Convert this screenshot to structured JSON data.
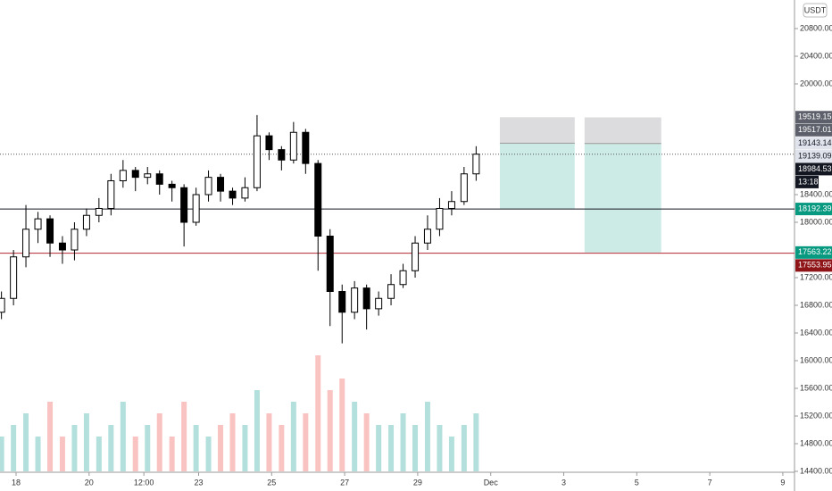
{
  "chart_data": {
    "type": "candlestick",
    "currency": "USDT",
    "x": [
      17.6,
      17.93,
      18.27,
      18.6,
      18.93,
      19.27,
      19.6,
      19.93,
      20.27,
      20.6,
      20.93,
      21.27,
      21.6,
      21.93,
      22.27,
      22.6,
      22.93,
      23.27,
      23.6,
      23.93,
      24.27,
      24.6,
      24.93,
      25.27,
      25.6,
      25.93,
      26.27,
      26.6,
      26.93,
      27.27,
      27.6,
      27.93,
      28.27,
      28.6,
      28.93,
      29.27,
      29.6,
      29.93,
      30.27,
      30.6
    ],
    "open": [
      16700,
      16900,
      17500,
      17900,
      18050,
      17700,
      17600,
      17900,
      18100,
      18200,
      18600,
      18750,
      18650,
      18700,
      18550,
      18500,
      18000,
      18400,
      18650,
      18450,
      18350,
      18500,
      19250,
      19050,
      18900,
      19300,
      18850,
      17800,
      17000,
      16700,
      17050,
      16750,
      16900,
      17100,
      17300,
      17700,
      17900,
      18200,
      18300,
      18700
    ],
    "high": [
      17000,
      17600,
      18250,
      18150,
      18100,
      17800,
      18000,
      18200,
      18350,
      18700,
      18900,
      18800,
      18800,
      18750,
      18600,
      18550,
      18500,
      18750,
      18700,
      18500,
      18650,
      19550,
      19300,
      19100,
      19450,
      19350,
      18900,
      17900,
      17100,
      17150,
      17100,
      17000,
      17250,
      17400,
      17800,
      18100,
      18350,
      18450,
      18800,
      19100
    ],
    "low": [
      16600,
      16800,
      17350,
      17700,
      17500,
      17400,
      17450,
      17800,
      18000,
      18100,
      18500,
      18450,
      18550,
      18400,
      18300,
      17650,
      17950,
      18300,
      18300,
      18250,
      18300,
      18450,
      18900,
      18750,
      18850,
      18700,
      17300,
      16500,
      16250,
      16600,
      16450,
      16650,
      16800,
      17050,
      17200,
      17600,
      17800,
      18100,
      18250,
      18600
    ],
    "close": [
      16900,
      17500,
      17900,
      18050,
      17700,
      17600,
      17900,
      18100,
      18200,
      18600,
      18750,
      18650,
      18700,
      18550,
      18500,
      18000,
      18400,
      18650,
      18450,
      18350,
      18500,
      19250,
      19050,
      18900,
      19300,
      18850,
      17800,
      17000,
      16700,
      17050,
      16750,
      16900,
      17100,
      17300,
      17700,
      17900,
      18200,
      18300,
      18700,
      18984.53
    ],
    "volume": [
      3,
      4,
      5,
      3,
      6,
      3,
      4,
      5,
      3,
      4,
      6,
      3,
      4,
      5,
      3,
      6,
      4,
      3,
      4,
      5,
      4,
      7,
      5,
      4,
      6,
      5,
      10,
      7,
      8,
      6,
      5,
      4,
      4,
      5,
      4,
      6,
      4,
      3,
      4,
      5
    ],
    "countdown": "13:18",
    "positions": [
      {
        "start": 31.25,
        "end": 33.3,
        "stop": 19519.15,
        "entry": 19143.14,
        "target": 18192.39
      },
      {
        "start": 33.57,
        "end": 35.67,
        "stop": 19517.01,
        "entry": 19139.09,
        "target": 17563.22
      }
    ],
    "horizontal_lines": [
      {
        "value": 18192.39,
        "color": "#131722"
      },
      {
        "value": 17553.95,
        "color": "#b22833"
      }
    ],
    "xlim": [
      17.56,
      39.32
    ],
    "ylim": [
      14116,
      21213
    ],
    "xticks": [
      18,
      20,
      {
        "value": 21.5,
        "label": "12:00"
      },
      23,
      25,
      27,
      29,
      {
        "value": 31,
        "label": "Dec"
      },
      {
        "value": 33,
        "label": "3"
      },
      {
        "value": 35,
        "label": "5"
      },
      {
        "value": 37,
        "label": "7"
      },
      {
        "value": 39,
        "label": "9"
      }
    ],
    "yticks": [
      {
        "value": 20800,
        "label": "20800.00"
      },
      {
        "value": 20400,
        "label": "20400.00"
      },
      {
        "value": 20000,
        "label": "20000.00"
      },
      {
        "value": 18400,
        "label": "18400.00"
      },
      {
        "value": 18000,
        "label": "18000.00"
      },
      {
        "value": 17200,
        "label": "17200.00"
      },
      {
        "value": 16800,
        "label": "16800.00"
      },
      {
        "value": 16400,
        "label": "16400.00"
      },
      {
        "value": 16000,
        "label": "16000.00"
      },
      {
        "value": 15600,
        "label": "15600.00"
      },
      {
        "value": 15200,
        "label": "15200.00"
      },
      {
        "value": 14800,
        "label": "14800.00"
      },
      {
        "value": 14400,
        "label": "14400.00"
      }
    ],
    "up_color": "#26a69a",
    "down_color": "#ef5350"
  }
}
